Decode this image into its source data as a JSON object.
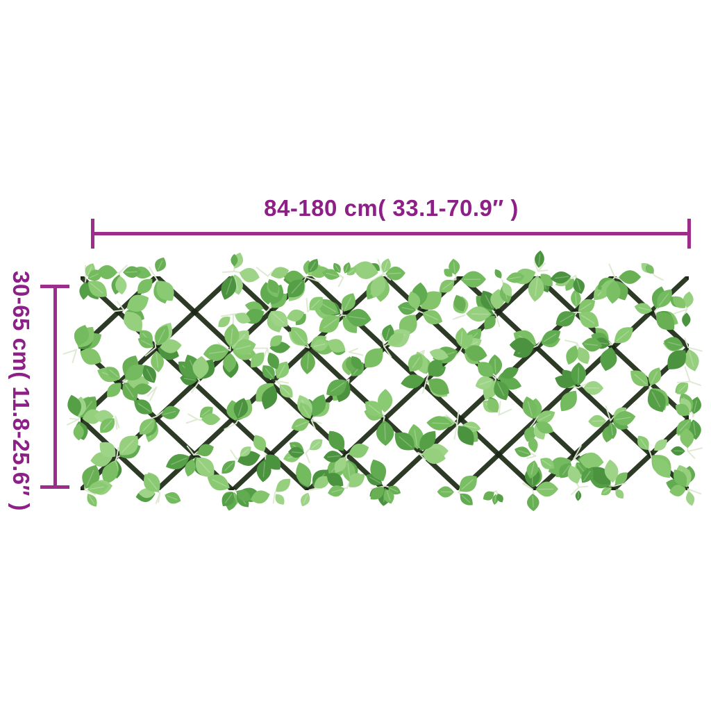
{
  "image": {
    "description": "Expandable artificial ivy trellis (dark diamond lattice covered with green leaves) on a white background with product dimension annotations",
    "background": "#ffffff"
  },
  "dimensions": {
    "width": {
      "label": "84-180 cm( 33.1-70.9″ )"
    },
    "height": {
      "label": "30-65 cm( 11.8-25.6″ )"
    },
    "text_color": "#8d2087",
    "line_color": "#9c2d88"
  },
  "trellis": {
    "lattice_color": "#2c3a26",
    "lattice_joint_color": "#1d2718",
    "stem_color": "#dde9d0",
    "leaf_colors": [
      "#4c9340",
      "#55a046",
      "#61ab50",
      "#69b055",
      "#74ba5e",
      "#7abf64",
      "#84c56c",
      "#8aca72",
      "#96d07e",
      "#9ed487"
    ]
  }
}
